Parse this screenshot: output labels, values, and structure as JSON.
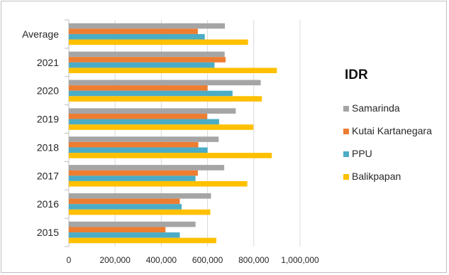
{
  "chart_data": {
    "type": "bar",
    "orientation": "horizontal",
    "categories": [
      "2015",
      "2016",
      "2017",
      "2018",
      "2019",
      "2020",
      "2021",
      "Average"
    ],
    "series": [
      {
        "name": "Samarinda",
        "color": "#a5a5a5",
        "values": [
          548000,
          615000,
          672000,
          648000,
          722000,
          830000,
          674000,
          675000
        ]
      },
      {
        "name": "Kutai Kartanegara",
        "color": "#ed7d31",
        "values": [
          418000,
          480000,
          558000,
          560000,
          598000,
          600000,
          678000,
          558000
        ]
      },
      {
        "name": "PPU",
        "color": "#4bacc6",
        "values": [
          480000,
          488000,
          548000,
          600000,
          650000,
          708000,
          630000,
          588000
        ]
      },
      {
        "name": "Balikpapan",
        "color": "#ffc000",
        "values": [
          638000,
          612000,
          772000,
          878000,
          798000,
          835000,
          900000,
          775000
        ]
      }
    ],
    "legend_title": "IDR",
    "legend_position": "right",
    "xlim": [
      0,
      1000000
    ],
    "xticks": [
      "0",
      "200,000",
      "400,000",
      "600,000",
      "800,000",
      "1,000,000"
    ],
    "grid": true,
    "title": "",
    "xlabel": "",
    "ylabel": ""
  }
}
